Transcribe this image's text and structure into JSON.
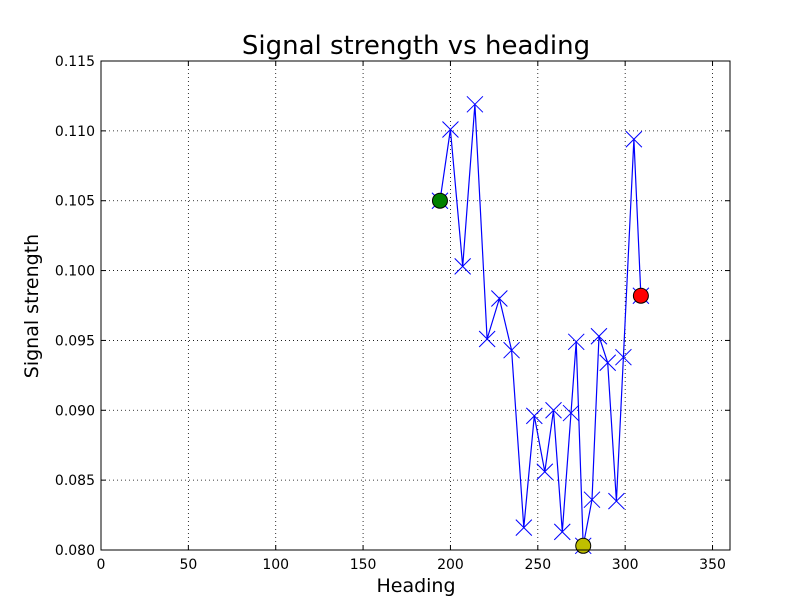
{
  "chart_data": {
    "type": "line",
    "title": "Signal strength vs heading",
    "xlabel": "Heading",
    "ylabel": "Signal strength",
    "xlim": [
      0,
      360
    ],
    "ylim": [
      0.08,
      0.115
    ],
    "xticks": [
      0,
      50,
      100,
      150,
      200,
      250,
      300,
      350
    ],
    "yticks": [
      0.08,
      0.085,
      0.09,
      0.095,
      0.1,
      0.105,
      0.11,
      0.115
    ],
    "xtick_labels": [
      "0",
      "50",
      "100",
      "150",
      "200",
      "250",
      "300",
      "350"
    ],
    "ytick_labels": [
      "0.080",
      "0.085",
      "0.090",
      "0.095",
      "0.100",
      "0.105",
      "0.110",
      "0.115"
    ],
    "grid": true,
    "series": [
      {
        "color": "#0000ff",
        "marker": "x",
        "x": [
          194,
          200,
          207,
          214,
          221,
          228,
          235,
          242,
          248,
          254,
          259,
          264,
          269,
          272,
          276,
          281,
          285,
          290,
          295,
          299,
          305,
          309
        ],
        "y": [
          0.105,
          0.1101,
          0.1003,
          0.1119,
          0.0951,
          0.098,
          0.0943,
          0.0816,
          0.0896,
          0.0856,
          0.09,
          0.0813,
          0.0898,
          0.0949,
          0.0803,
          0.0836,
          0.0953,
          0.0934,
          0.0835,
          0.0938,
          0.1094,
          0.0982
        ]
      }
    ],
    "highlights": [
      {
        "x": 194,
        "y": 0.105,
        "color": "#008000"
      },
      {
        "x": 276,
        "y": 0.0803,
        "color": "#bfbf00"
      },
      {
        "x": 309,
        "y": 0.0982,
        "color": "#ff0000"
      }
    ]
  }
}
